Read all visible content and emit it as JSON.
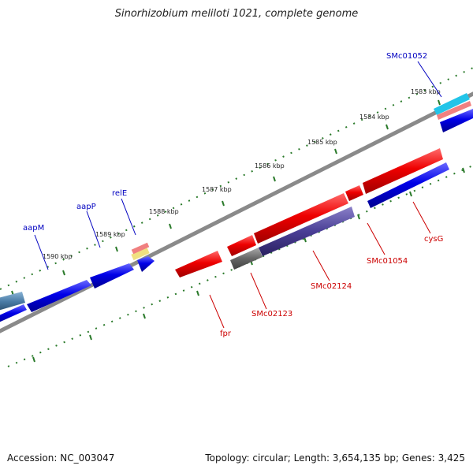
{
  "title": "Sinorhizobium meliloti 1021, complete genome",
  "footer": {
    "accession": "Accession: NC_003047",
    "topology": "Topology: circular; Length: 3,654,135 bp; Genes: 3,425"
  },
  "ticks": [
    "1583 kbp",
    "1584 kbp",
    "1585 kbp",
    "1586 kbp",
    "1587 kbp",
    "1588 kbp",
    "1589 kbp",
    "1590 kbp"
  ],
  "gene_labels": {
    "SMc01052": "SMc01052",
    "relE": "relE",
    "aapP": "aapP",
    "aapM": "aapM",
    "fpr": "fpr",
    "SMc02123": "SMc02123",
    "SMc02124": "SMc02124",
    "SMc01054": "SMc01054",
    "cysG": "cysG"
  },
  "colors": {
    "blue": "#0000e8",
    "red": "#ee0000",
    "purple": "#4a3f96",
    "gray": "#666666",
    "steel": "#4a7ca6",
    "cyan": "#22c4e8",
    "salmon": "#f08080",
    "yellow": "#f0e080",
    "backbone": "#888888",
    "tick": "#2a7a2a"
  }
}
